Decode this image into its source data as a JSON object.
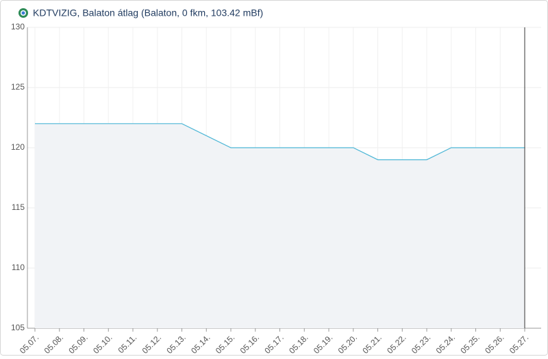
{
  "chart_data": {
    "type": "area",
    "title": "KDTVIZIG, Balaton átlag (Balaton, 0 fkm, 103.42 mBf)",
    "categories": [
      "05.07.",
      "05.08.",
      "05.09.",
      "05.10.",
      "05.11.",
      "05.12.",
      "05.13.",
      "05.14.",
      "05.15.",
      "05.16.",
      "05.17.",
      "05.18.",
      "05.19.",
      "05.20.",
      "05.21.",
      "05.22.",
      "05.23.",
      "05.24.",
      "05.25.",
      "05.26.",
      "05.27."
    ],
    "values": [
      122,
      122,
      122,
      122,
      122,
      122,
      122,
      121,
      120,
      120,
      120,
      120,
      120,
      120,
      119,
      119,
      119,
      120,
      120,
      120,
      120
    ],
    "color": "#4cb6d6",
    "fill": "#f1f3f6",
    "ylim": [
      105,
      130
    ],
    "yticks": [
      105,
      110,
      115,
      120,
      125,
      130
    ],
    "grid": true
  }
}
